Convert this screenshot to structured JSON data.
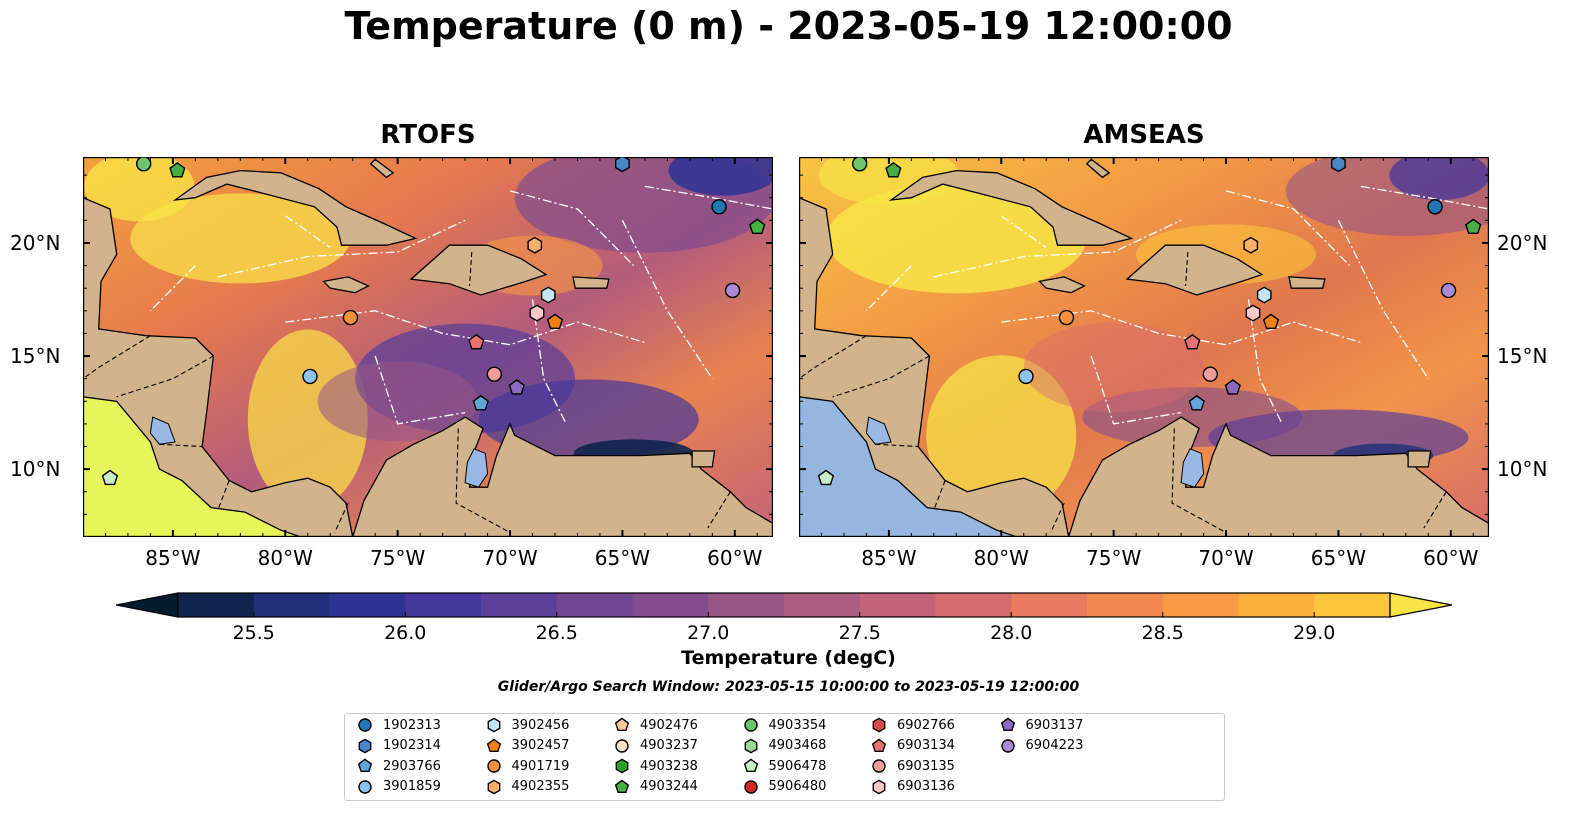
{
  "title": "Temperature (0 m) - 2023-05-19 12:00:00",
  "panels": [
    {
      "id": "rtofs",
      "title": "RTOFS"
    },
    {
      "id": "amseas",
      "title": "AMSEAS"
    }
  ],
  "map_extent": {
    "lon_min": -89,
    "lon_max": -58.3,
    "lat_min": 7,
    "lat_max": 23.8
  },
  "lon_ticks": [
    {
      "value": -85,
      "label": "85°W"
    },
    {
      "value": -80,
      "label": "80°W"
    },
    {
      "value": -75,
      "label": "75°W"
    },
    {
      "value": -70,
      "label": "70°W"
    },
    {
      "value": -65,
      "label": "65°W"
    },
    {
      "value": -60,
      "label": "60°W"
    }
  ],
  "lat_ticks": [
    {
      "value": 20,
      "label": "20°N"
    },
    {
      "value": 15,
      "label": "15°N"
    },
    {
      "value": 10,
      "label": "10°N"
    }
  ],
  "colorbar": {
    "label": "Temperature (degC)",
    "min": 25.25,
    "max": 29.25,
    "colors": [
      "#041a2e",
      "#10254d",
      "#1f2f7a",
      "#2d3392",
      "#45379b",
      "#5c3f98",
      "#714692",
      "#844e8c",
      "#985686",
      "#ad5d80",
      "#c3637a",
      "#d76c6f",
      "#e77a5f",
      "#f28950",
      "#f99a44",
      "#fcaf3a",
      "#fcc53a",
      "#f7e446"
    ],
    "ticks": [
      {
        "value": 25.5,
        "label": "25.5"
      },
      {
        "value": 26.0,
        "label": "26.0"
      },
      {
        "value": 26.5,
        "label": "26.5"
      },
      {
        "value": 27.0,
        "label": "27.0"
      },
      {
        "value": 27.5,
        "label": "27.5"
      },
      {
        "value": 28.0,
        "label": "28.0"
      },
      {
        "value": 28.5,
        "label": "28.5"
      },
      {
        "value": 29.0,
        "label": "29.0"
      }
    ]
  },
  "search_window": "Glider/Argo Search Window: 2023-05-15 10:00:00 to 2023-05-19 12:00:00",
  "legend": [
    {
      "label": "1902313",
      "marker": "circle",
      "color": "#1f77b4"
    },
    {
      "label": "1902314",
      "marker": "hexagon",
      "color": "#4a86c5"
    },
    {
      "label": "2903766",
      "marker": "pentagon",
      "color": "#62a6d8"
    },
    {
      "label": "3901859",
      "marker": "circle",
      "color": "#8ec3ea"
    },
    {
      "label": "3902456",
      "marker": "hexagon",
      "color": "#c6e4f7"
    },
    {
      "label": "3902457",
      "marker": "pentagon",
      "color": "#f57f0e"
    },
    {
      "label": "4901719",
      "marker": "circle",
      "color": "#f9913a"
    },
    {
      "label": "4902355",
      "marker": "hexagon",
      "color": "#fbb06a"
    },
    {
      "label": "4902476",
      "marker": "pentagon",
      "color": "#fccb9d"
    },
    {
      "label": "4903237",
      "marker": "circle",
      "color": "#fde3cc"
    },
    {
      "label": "4903238",
      "marker": "hexagon",
      "color": "#2ca02c"
    },
    {
      "label": "4903244",
      "marker": "pentagon",
      "color": "#46b046"
    },
    {
      "label": "4903354",
      "marker": "circle",
      "color": "#6dc56d"
    },
    {
      "label": "4903468",
      "marker": "hexagon",
      "color": "#9bd99b"
    },
    {
      "label": "5906478",
      "marker": "pentagon",
      "color": "#c8eec8"
    },
    {
      "label": "5906480",
      "marker": "circle",
      "color": "#d62728"
    },
    {
      "label": "6902766",
      "marker": "hexagon",
      "color": "#dd4a4a"
    },
    {
      "label": "6903134",
      "marker": "pentagon",
      "color": "#ea7272"
    },
    {
      "label": "6903135",
      "marker": "circle",
      "color": "#f29c9c"
    },
    {
      "label": "6903136",
      "marker": "hexagon",
      "color": "#f9c8c8"
    },
    {
      "label": "6903137",
      "marker": "pentagon",
      "color": "#8c6bbf"
    },
    {
      "label": "6904223",
      "marker": "circle",
      "color": "#a98ad6"
    }
  ],
  "platforms": [
    {
      "id": "4903354",
      "lon": -86.3,
      "lat": 23.5
    },
    {
      "id": "4903244",
      "lon": -84.8,
      "lat": 23.2
    },
    {
      "id": "1902314",
      "lon": -65.0,
      "lat": 23.5
    },
    {
      "id": "1902313",
      "lon": -60.7,
      "lat": 21.6
    },
    {
      "id": "4903244",
      "lon": -59.0,
      "lat": 20.7
    },
    {
      "id": "4902355",
      "lon": -68.9,
      "lat": 19.9
    },
    {
      "id": "3902456",
      "lon": -68.3,
      "lat": 17.7
    },
    {
      "id": "6904223",
      "lon": -60.1,
      "lat": 17.9
    },
    {
      "id": "4901719",
      "lon": -77.1,
      "lat": 16.7
    },
    {
      "id": "6903136",
      "lon": -68.8,
      "lat": 16.9
    },
    {
      "id": "3902457",
      "lon": -68.0,
      "lat": 16.5
    },
    {
      "id": "6903134",
      "lon": -71.5,
      "lat": 15.6
    },
    {
      "id": "3901859",
      "lon": -78.9,
      "lat": 14.1
    },
    {
      "id": "6903135",
      "lon": -70.7,
      "lat": 14.2
    },
    {
      "id": "6903137",
      "lon": -69.7,
      "lat": 13.6
    },
    {
      "id": "2903766",
      "lon": -71.3,
      "lat": 12.9
    },
    {
      "id": "5906478",
      "lon": -87.8,
      "lat": 9.6
    }
  ]
}
